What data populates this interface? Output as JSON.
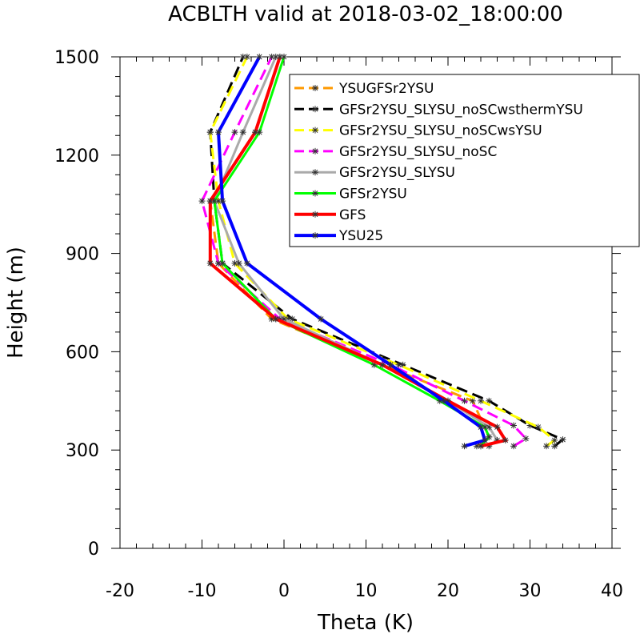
{
  "chart_data": {
    "type": "line",
    "title": "ACBLTH valid at 2018-03-02_18:00:00",
    "xlabel": "Theta (K)",
    "ylabel": "Height (m)",
    "xlim": [
      -20,
      40
    ],
    "ylim": [
      0,
      1500
    ],
    "xticks": [
      -20,
      -10,
      0,
      10,
      20,
      30,
      40
    ],
    "yticks": [
      0,
      300,
      600,
      900,
      1200,
      1500
    ],
    "xtick_labels": [
      "-20",
      "-10",
      "0",
      "10",
      "20",
      "30",
      "40"
    ],
    "ytick_labels": [
      "0",
      "300",
      "600",
      "900",
      "1200",
      "1500"
    ],
    "grid": false,
    "legend_position": "top-right",
    "series": [
      {
        "name": "YSUGFSr2YSU",
        "color": "#ff9900",
        "dash": "dash",
        "points": [
          [
            23.5,
            312
          ],
          [
            25,
            340
          ],
          [
            23,
            450
          ],
          [
            12,
            560
          ],
          [
            -1.5,
            700
          ],
          [
            -8,
            870
          ],
          [
            -9,
            1060
          ],
          [
            -3.5,
            1270
          ],
          [
            -0.5,
            1500
          ]
        ]
      },
      {
        "name": "GFSr2YSU_SLYSU_noSCwsthermYSU",
        "color": "#000000",
        "dash": "dash",
        "points": [
          [
            33,
            312
          ],
          [
            34,
            332
          ],
          [
            30,
            375
          ],
          [
            25,
            450
          ],
          [
            14.5,
            560
          ],
          [
            1,
            700
          ],
          [
            -7.5,
            870
          ],
          [
            -8.5,
            1060
          ],
          [
            -9,
            1270
          ],
          [
            -5,
            1500
          ]
        ]
      },
      {
        "name": "GFSr2YSU_SLYSU_noSCwsYSU",
        "color": "#ffff00",
        "dash": "dash",
        "points": [
          [
            32,
            312
          ],
          [
            33,
            330
          ],
          [
            31,
            370
          ],
          [
            24,
            450
          ],
          [
            14,
            560
          ],
          [
            0.5,
            700
          ],
          [
            -6,
            870
          ],
          [
            -8,
            1060
          ],
          [
            -9,
            1270
          ],
          [
            -4.5,
            1500
          ]
        ]
      },
      {
        "name": "GFSr2YSU_SLYSU_noSC",
        "color": "#ff00ff",
        "dash": "dash",
        "points": [
          [
            28,
            312
          ],
          [
            29.5,
            335
          ],
          [
            28,
            375
          ],
          [
            22,
            450
          ],
          [
            13,
            560
          ],
          [
            -0.5,
            700
          ],
          [
            -8,
            870
          ],
          [
            -10,
            1060
          ],
          [
            -6,
            1270
          ],
          [
            -1.5,
            1500
          ]
        ]
      },
      {
        "name": "GFSr2YSU_SLYSU",
        "color": "#aaaaaa",
        "dash": "solid",
        "points": [
          [
            25,
            312
          ],
          [
            26,
            330
          ],
          [
            25,
            370
          ],
          [
            20,
            450
          ],
          [
            12,
            560
          ],
          [
            0,
            700
          ],
          [
            -5.5,
            870
          ],
          [
            -8.5,
            1060
          ],
          [
            -5,
            1270
          ],
          [
            -1,
            1500
          ]
        ]
      },
      {
        "name": "GFSr2YSU",
        "color": "#00ff00",
        "dash": "solid",
        "points": [
          [
            24,
            312
          ],
          [
            25,
            340
          ],
          [
            24.5,
            370
          ],
          [
            19,
            450
          ],
          [
            11,
            560
          ],
          [
            -1,
            700
          ],
          [
            -7.5,
            870
          ],
          [
            -8.5,
            1060
          ],
          [
            -3,
            1270
          ],
          [
            0,
            1500
          ]
        ]
      },
      {
        "name": "GFS",
        "color": "#ff0000",
        "dash": "solid",
        "points": [
          [
            24,
            312
          ],
          [
            27,
            330
          ],
          [
            26,
            370
          ],
          [
            20,
            450
          ],
          [
            12,
            560
          ],
          [
            -1,
            700
          ],
          [
            -9,
            870
          ],
          [
            -9,
            1060
          ],
          [
            -3.5,
            1270
          ],
          [
            -0.5,
            1500
          ]
        ]
      },
      {
        "name": "YSU25",
        "color": "#0000ff",
        "dash": "solid",
        "points": [
          [
            22,
            312
          ],
          [
            24.5,
            330
          ],
          [
            24,
            370
          ],
          [
            19.5,
            450
          ],
          [
            13,
            560
          ],
          [
            4.5,
            700
          ],
          [
            -4.5,
            870
          ],
          [
            -7.5,
            1060
          ],
          [
            -8,
            1270
          ],
          [
            -3,
            1500
          ]
        ]
      }
    ]
  }
}
